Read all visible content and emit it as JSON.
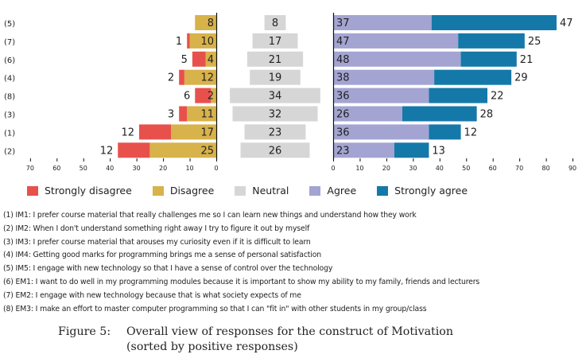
{
  "chart_data": {
    "type": "bar",
    "subtype": "diverging-stacked-likert",
    "title": "Figure 5: Overall view of responses for the construct of Motivation (sorted by positive responses)",
    "categories": [
      "(5)",
      "(7)",
      "(6)",
      "(4)",
      "(8)",
      "(3)",
      "(1)",
      "(2)"
    ],
    "series": [
      {
        "name": "Strongly disagree",
        "color": "#e8504c",
        "values": [
          0,
          1,
          5,
          2,
          6,
          3,
          12,
          12
        ]
      },
      {
        "name": "Disagree",
        "color": "#d8b24a",
        "values": [
          8,
          10,
          4,
          12,
          2,
          11,
          17,
          25
        ]
      },
      {
        "name": "Neutral",
        "color": "#d6d6d6",
        "values": [
          8,
          17,
          21,
          19,
          34,
          32,
          23,
          26
        ]
      },
      {
        "name": "Agree",
        "color": "#a3a4d1",
        "values": [
          37,
          47,
          48,
          38,
          36,
          26,
          36,
          23
        ]
      },
      {
        "name": "Strongly agree",
        "color": "#1479a8",
        "values": [
          47,
          25,
          21,
          29,
          22,
          28,
          12,
          13
        ]
      }
    ],
    "left_axis": {
      "ticks": [
        70,
        60,
        50,
        40,
        30,
        20,
        10,
        0
      ],
      "range": [
        70,
        0
      ],
      "direction": "reversed"
    },
    "right_axis": {
      "ticks": [
        0,
        10,
        20,
        30,
        40,
        50,
        60,
        70,
        80,
        90
      ],
      "range": [
        0,
        90
      ]
    },
    "legend_position": "bottom",
    "grid": false
  },
  "legend": [
    {
      "label": "Strongly disagree",
      "color": "#e8504c"
    },
    {
      "label": "Disagree",
      "color": "#d8b24a"
    },
    {
      "label": "Neutral",
      "color": "#d6d6d6"
    },
    {
      "label": "Agree",
      "color": "#a3a4d1"
    },
    {
      "label": "Strongly agree",
      "color": "#1479a8"
    }
  ],
  "items": [
    "(1) IM1: I prefer course material that really challenges me so I can learn new things and understand how they work",
    "(2) IM2: When I don't understand something right away I try to figure it out by myself",
    "(3) IM3: I prefer course material that arouses my curiosity even if it is difficult to learn",
    "(4) IM4: Getting good marks for programming brings me a sense of personal satisfaction",
    "(5) IM5: I engage with new technology so that I have a sense of control over the technology",
    "(6) EM1: I want to do well in my programming modules because it is important to show my ability to my family, friends and lecturers",
    "(7) EM2: I engage with new technology because that is what society expects of me",
    "(8) EM3: I make an effort to master computer programming so that I can \"fit in\" with other students in my group/class"
  ],
  "caption": {
    "label": "Figure 5:",
    "line1": "Overall view of responses for the construct of Motivation",
    "line2": "(sorted by positive responses)"
  }
}
